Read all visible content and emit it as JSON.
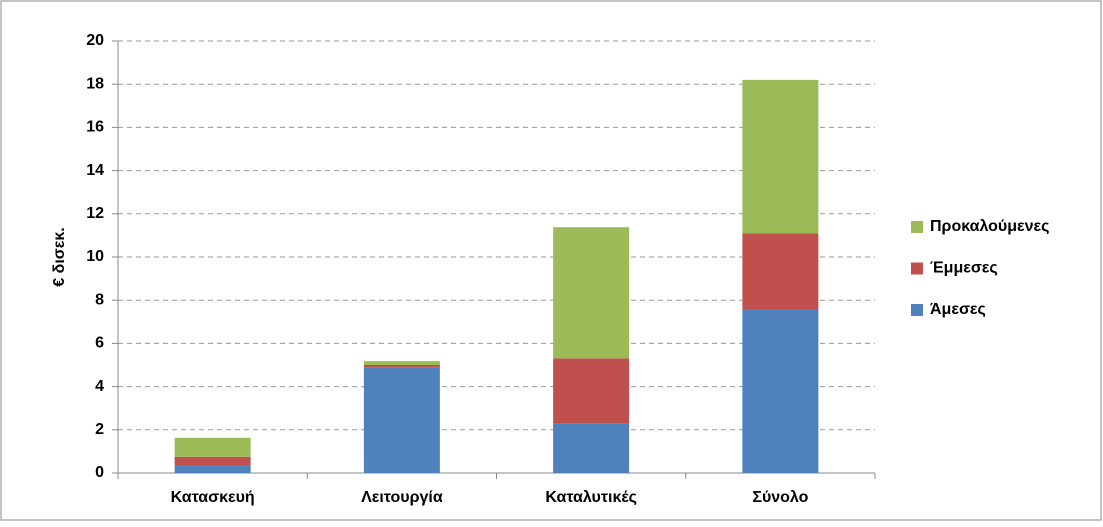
{
  "chart_data": {
    "type": "stacked_bar",
    "y_label": "€ δισεκ.",
    "categories": [
      "Κατασκευή",
      "Λειτουργία",
      "Καταλυτικές",
      "Σύνολο"
    ],
    "series": [
      {
        "name": "Άμεσες",
        "color": "#4f81bd",
        "values": [
          0.35,
          4.9,
          2.31,
          7.55
        ]
      },
      {
        "name": "Έμμεσες",
        "color": "#c0504d",
        "values": [
          0.4,
          0.1,
          3.0,
          3.55
        ]
      },
      {
        "name": "Προκαλούμενες",
        "color": "#9bbb59",
        "values": [
          0.88,
          0.18,
          6.07,
          7.1
        ]
      }
    ],
    "ylim": [
      0,
      20
    ],
    "yticks": [
      0,
      2,
      4,
      6,
      8,
      10,
      12,
      14,
      16,
      18,
      20
    ],
    "grid": true,
    "legend": "right"
  }
}
